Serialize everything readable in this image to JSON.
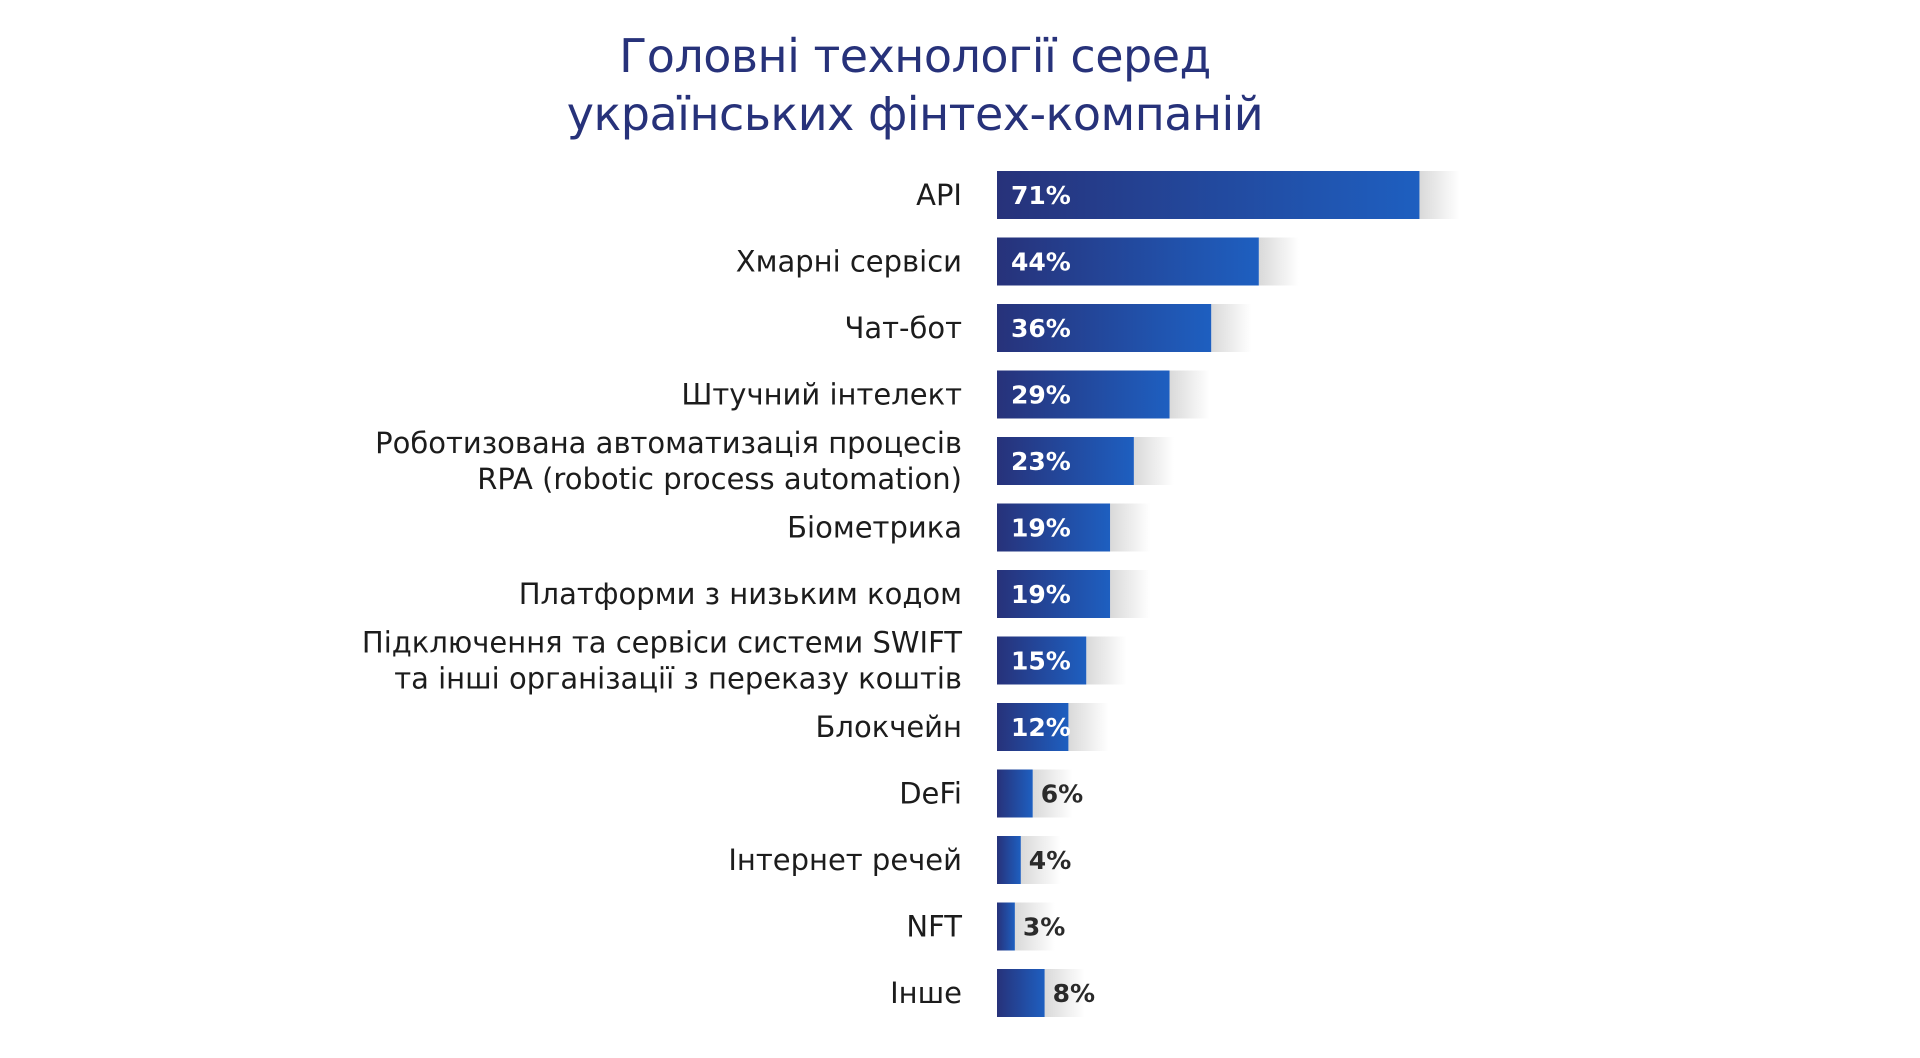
{
  "colors": {
    "title": "#27327a",
    "bar_dark": "#27327a",
    "bar_light": "#1e5fc0",
    "shadow": "#d9d9d9"
  },
  "chart_data": {
    "type": "bar",
    "orientation": "horizontal",
    "title_lines": [
      "Головні технології серед",
      "українських фінтех-компаній"
    ],
    "xlabel": "",
    "ylabel": "",
    "unit": "%",
    "grid": false,
    "categories": [
      [
        "API"
      ],
      [
        "Хмарні сервіси"
      ],
      [
        "Чат-бот"
      ],
      [
        "Штучний інтелект"
      ],
      [
        "Роботизована автоматизація процесів",
        "RPA (robotic process automation)"
      ],
      [
        "Біометрика"
      ],
      [
        "Платформи з низьким кодом"
      ],
      [
        "Підключення та сервіси системи SWIFT",
        "та інші організації з переказу коштів"
      ],
      [
        "Блокчейн"
      ],
      [
        "DeFi"
      ],
      [
        "Інтернет речей"
      ],
      [
        "NFT"
      ],
      [
        "Інше"
      ]
    ],
    "values": [
      71,
      44,
      36,
      29,
      23,
      19,
      19,
      15,
      12,
      6,
      4,
      3,
      8
    ],
    "value_labels": [
      "71%",
      "44%",
      "36%",
      "29%",
      "23%",
      "19%",
      "19%",
      "15%",
      "12%",
      "6%",
      "4%",
      "3%",
      "8%"
    ]
  }
}
